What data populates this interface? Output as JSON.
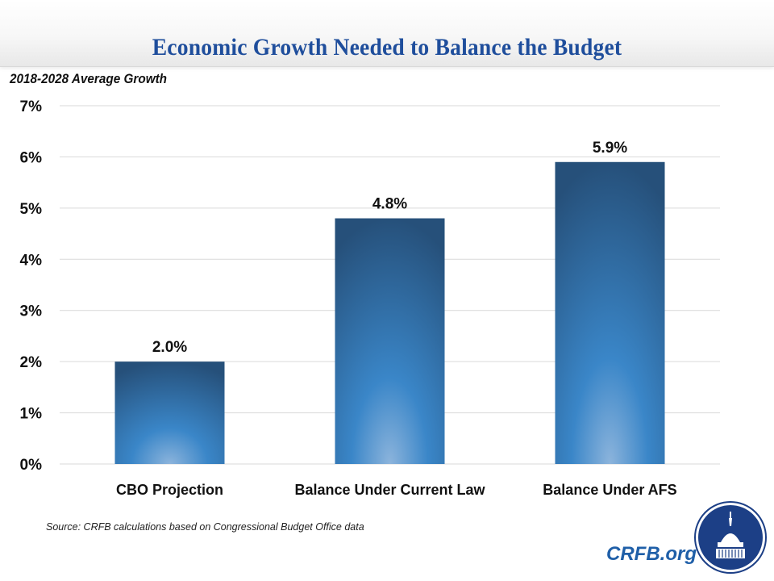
{
  "header": {
    "title": "Economic Growth Needed to Balance the Budget"
  },
  "subtitle": "2018-2028 Average Growth",
  "footer": {
    "source": "Source: CRFB calculations based on Congressional Budget Office data",
    "brand": "CRFB.org",
    "logo_icon": "capitol-dome-icon"
  },
  "colors": {
    "title": "#1f4e9c",
    "bar_top": "#27527a",
    "bar_mid": "#3a86c8",
    "bar_glow": "#8cb4dc",
    "brand": "#1f5fa8",
    "logo": "#1c3f86"
  },
  "chart_data": {
    "type": "bar",
    "title": "Economic Growth Needed to Balance the Budget",
    "subtitle": "2018-2028 Average Growth",
    "categories": [
      "CBO Projection",
      "Balance Under Current Law",
      "Balance Under AFS"
    ],
    "values": [
      2.0,
      4.8,
      5.9
    ],
    "data_labels": [
      "2.0%",
      "4.8%",
      "5.9%"
    ],
    "xlabel": "",
    "ylabel": "",
    "ylim": [
      0,
      7
    ],
    "yticks": [
      0,
      1,
      2,
      3,
      4,
      5,
      6,
      7
    ],
    "ytick_labels": [
      "0%",
      "1%",
      "2%",
      "3%",
      "4%",
      "5%",
      "6%",
      "7%"
    ],
    "grid": true,
    "legend": "none"
  }
}
